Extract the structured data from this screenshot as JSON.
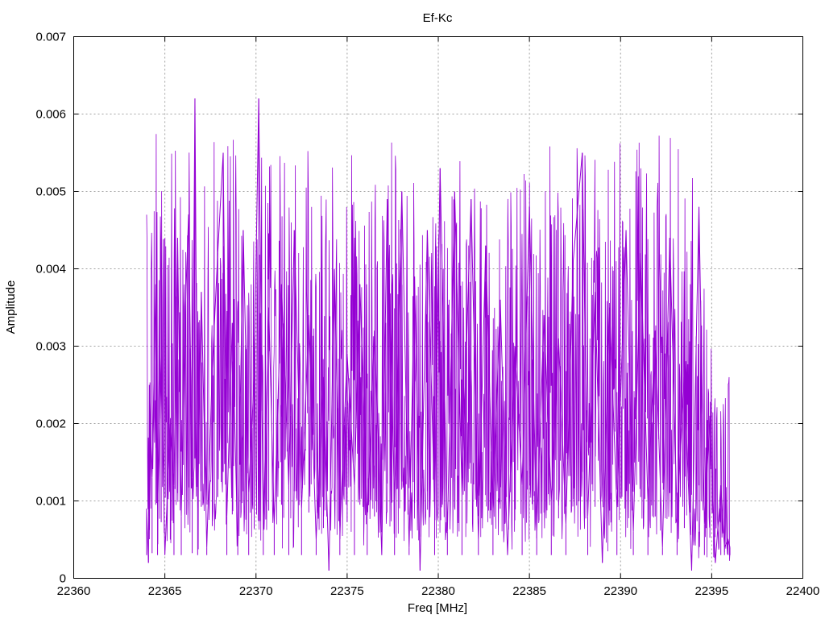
{
  "chart_data": {
    "type": "line",
    "title": "Ef-Kc",
    "xlabel": "Freq [MHz]",
    "ylabel": "Amplitude",
    "xlim": [
      22360,
      22400
    ],
    "ylim": [
      0,
      0.007
    ],
    "xticks": [
      22360,
      22365,
      22370,
      22375,
      22380,
      22385,
      22390,
      22395,
      22400
    ],
    "yticks": [
      "0",
      "0.001",
      "0.002",
      "0.003",
      "0.004",
      "0.005",
      "0.006",
      "0.007"
    ],
    "grid": true,
    "series_color": "#9400d3",
    "x_range": [
      22364.0,
      22396.0
    ],
    "series": [
      {
        "values": [
          [
            22364.0,
            0.0009
          ],
          [
            22364.1,
            0.0002
          ],
          [
            22364.15,
            0.0025
          ],
          [
            22364.3,
            0.0013
          ],
          [
            22364.5,
            0.0038
          ],
          [
            22364.6,
            0.0009
          ],
          [
            22364.8,
            0.0029
          ],
          [
            22365.0,
            0.0003
          ],
          [
            22365.3,
            0.002
          ],
          [
            22365.5,
            0.0012
          ],
          [
            22365.7,
            0.0044
          ],
          [
            22365.9,
            0.0008
          ],
          [
            22366.1,
            0.0033
          ],
          [
            22366.3,
            0.0047
          ],
          [
            22366.5,
            0.0013
          ],
          [
            22366.65,
            0.0062
          ],
          [
            22366.8,
            0.0009
          ],
          [
            22367.0,
            0.0037
          ],
          [
            22367.3,
            0.0004
          ],
          [
            22367.6,
            0.0027
          ],
          [
            22367.9,
            0.0042
          ],
          [
            22368.2,
            0.0055
          ],
          [
            22368.4,
            0.0008
          ],
          [
            22368.7,
            0.0033
          ],
          [
            22369.0,
            0.0004
          ],
          [
            22369.3,
            0.0045
          ],
          [
            22369.6,
            0.0011
          ],
          [
            22369.9,
            0.0026
          ],
          [
            22370.15,
            0.0062
          ],
          [
            22370.4,
            0.0006
          ],
          [
            22370.7,
            0.0035
          ],
          [
            22371.0,
            0.0007
          ],
          [
            22371.4,
            0.0038
          ],
          [
            22371.8,
            0.0012
          ],
          [
            22372.1,
            0.0045
          ],
          [
            22372.5,
            0.0009
          ],
          [
            22372.9,
            0.0034
          ],
          [
            22373.3,
            0.0005
          ],
          [
            22373.7,
            0.0026
          ],
          [
            22374.0,
            0.0001
          ],
          [
            22374.3,
            0.004
          ],
          [
            22374.6,
            0.0006
          ],
          [
            22375.0,
            0.0029
          ],
          [
            22375.4,
            0.0012
          ],
          [
            22375.7,
            0.0038
          ],
          [
            22376.1,
            0.0008
          ],
          [
            22376.5,
            0.0032
          ],
          [
            22376.9,
            0.0003
          ],
          [
            22377.2,
            0.0049
          ],
          [
            22377.6,
            0.001
          ],
          [
            22378.0,
            0.005
          ],
          [
            22378.4,
            0.0004
          ],
          [
            22378.7,
            0.0039
          ],
          [
            22379.0,
            0.0001
          ],
          [
            22379.4,
            0.0045
          ],
          [
            22379.8,
            0.0009
          ],
          [
            22380.1,
            0.0053
          ],
          [
            22380.5,
            0.0006
          ],
          [
            22380.9,
            0.005
          ],
          [
            22381.3,
            0.0011
          ],
          [
            22381.8,
            0.0049
          ],
          [
            22382.2,
            0.0005
          ],
          [
            22382.6,
            0.0043
          ],
          [
            22383.0,
            0.0009
          ],
          [
            22383.4,
            0.0036
          ],
          [
            22383.8,
            0.0003
          ],
          [
            22384.2,
            0.003
          ],
          [
            22384.6,
            0.0012
          ],
          [
            22385.0,
            0.0048
          ],
          [
            22385.4,
            0.0006
          ],
          [
            22385.8,
            0.0034
          ],
          [
            22386.2,
            0.001
          ],
          [
            22386.6,
            0.0031
          ],
          [
            22387.0,
            0.0007
          ],
          [
            22387.4,
            0.0041
          ],
          [
            22387.9,
            0.0055
          ],
          [
            22388.2,
            0.0008
          ],
          [
            22388.6,
            0.0037
          ],
          [
            22389.0,
            0.0002
          ],
          [
            22389.4,
            0.0035
          ],
          [
            22389.8,
            0.0009
          ],
          [
            22390.3,
            0.0045
          ],
          [
            22390.7,
            0.0006
          ],
          [
            22391.1,
            0.0042
          ],
          [
            22391.5,
            0.001
          ],
          [
            22391.9,
            0.0032
          ],
          [
            22392.3,
            0.0004
          ],
          [
            22392.7,
            0.0044
          ],
          [
            22393.1,
            0.0008
          ],
          [
            22393.5,
            0.0026
          ],
          [
            22393.9,
            0.0001
          ],
          [
            22394.3,
            0.0048
          ],
          [
            22394.6,
            0.0007
          ],
          [
            22394.9,
            0.0021
          ],
          [
            22395.2,
            0.0002
          ],
          [
            22395.5,
            0.0012
          ],
          [
            22395.7,
            0.0004
          ],
          [
            22395.9,
            0.0005
          ],
          [
            22396.0,
            0.0004
          ]
        ]
      }
    ]
  }
}
